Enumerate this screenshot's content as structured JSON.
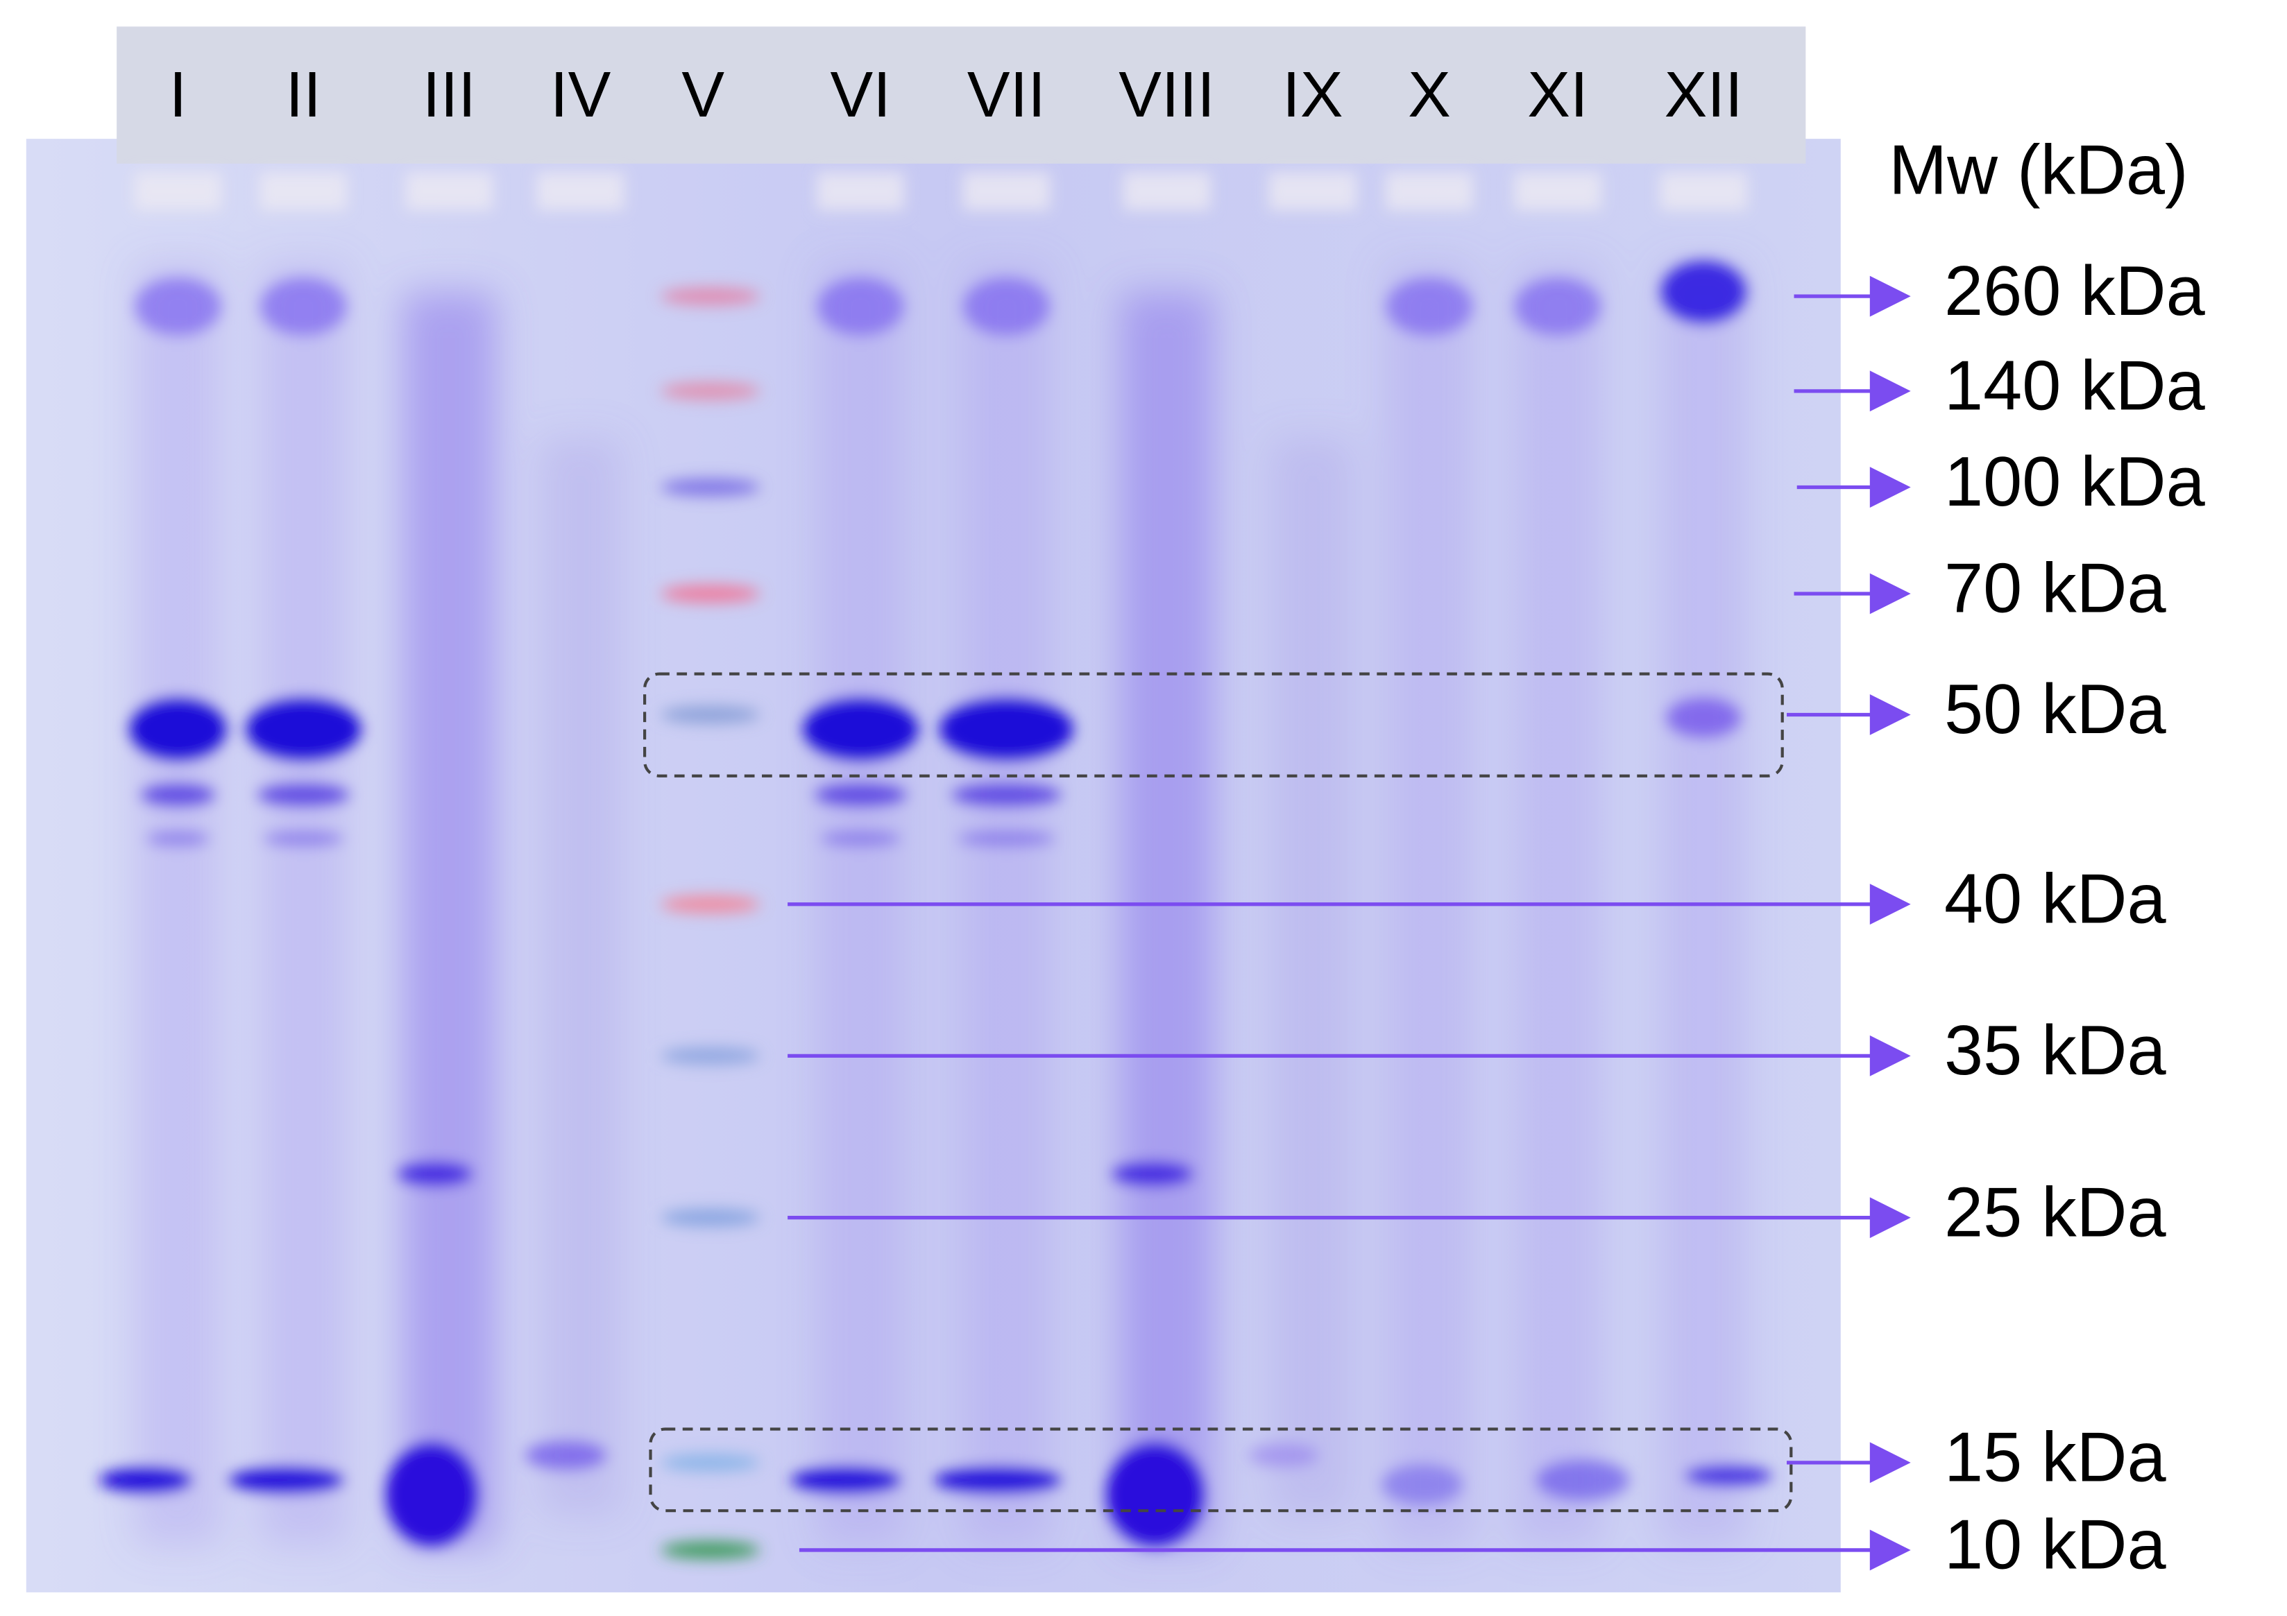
{
  "lanes": [
    "I",
    "II",
    "III",
    "IV",
    "V",
    "VI",
    "VII",
    "VIII",
    "IX",
    "X",
    "XI",
    "XII"
  ],
  "mw_header": "Mw (kDa)",
  "markers": [
    "260 kDa",
    "140 kDa",
    "100 kDa",
    "70 kDa",
    "50 kDa",
    "40 kDa",
    "35 kDa",
    "25 kDa",
    "15 kDa",
    "10 kDa"
  ]
}
